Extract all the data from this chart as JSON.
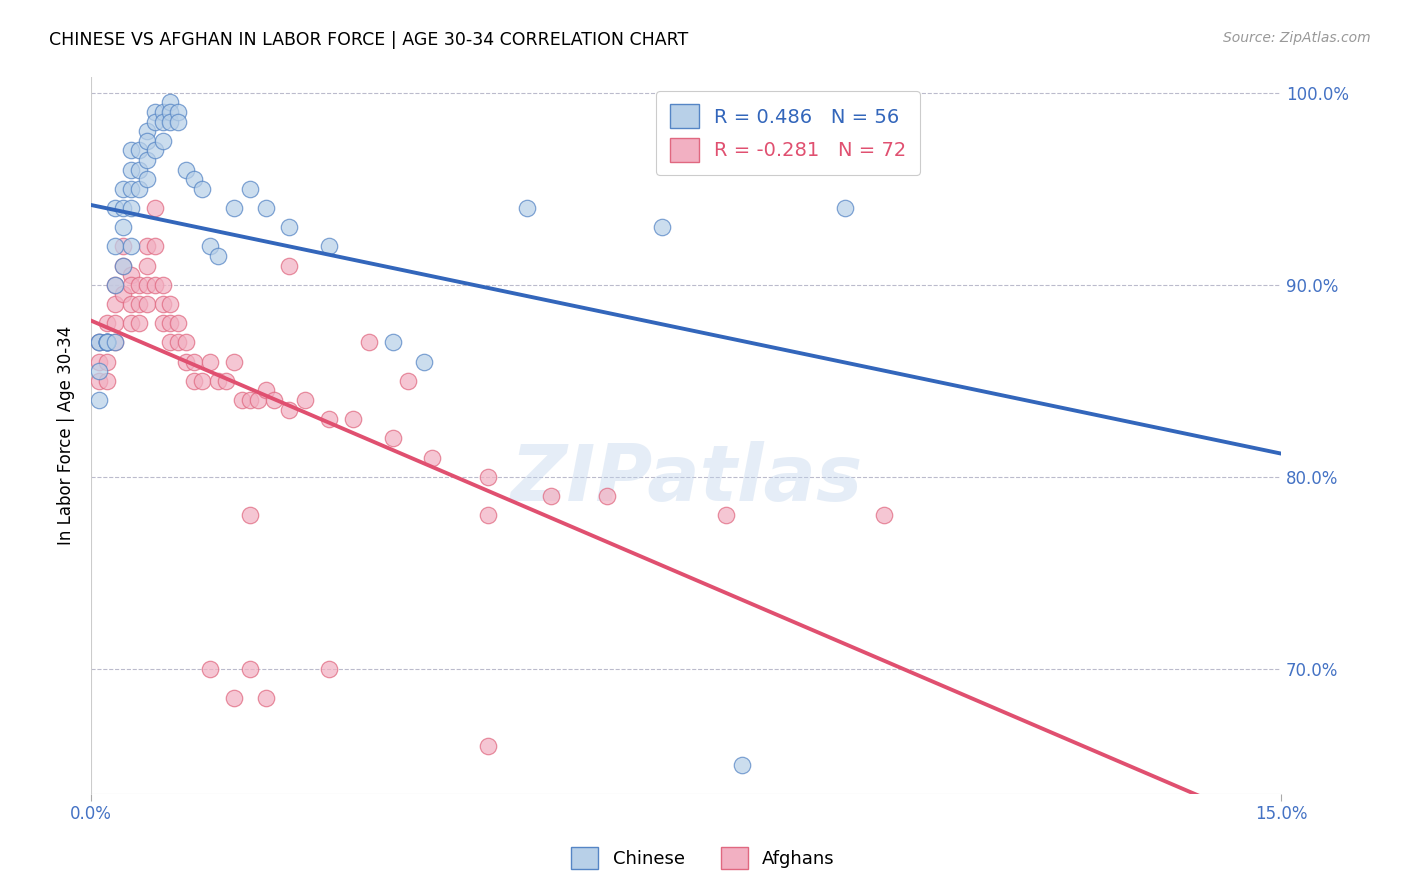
{
  "title": "CHINESE VS AFGHAN IN LABOR FORCE | AGE 30-34 CORRELATION CHART",
  "source": "Source: ZipAtlas.com",
  "ylabel_label": "In Labor Force | Age 30-34",
  "xmin": 0.0,
  "xmax": 0.15,
  "ymin": 0.635,
  "ymax": 1.008,
  "ytick_vals": [
    0.7,
    0.8,
    0.9,
    1.0
  ],
  "ytick_labels": [
    "70.0%",
    "80.0%",
    "90.0%",
    "100.0%"
  ],
  "xtick_vals": [
    0.0,
    0.15
  ],
  "xtick_labels": [
    "0.0%",
    "15.0%"
  ],
  "legend_blue_text": "R = 0.486   N = 56",
  "legend_pink_text": "R = -0.281   N = 72",
  "watermark": "ZIPatlas",
  "blue_fill": "#b8d0e8",
  "blue_edge": "#5585c5",
  "pink_fill": "#f2b0c2",
  "pink_edge": "#e06880",
  "blue_line": "#3366bb",
  "pink_line": "#e05070",
  "chinese_x": [
    0.001,
    0.001,
    0.001,
    0.001,
    0.002,
    0.002,
    0.002,
    0.002,
    0.002,
    0.003,
    0.003,
    0.003,
    0.003,
    0.004,
    0.004,
    0.004,
    0.004,
    0.005,
    0.005,
    0.005,
    0.005,
    0.005,
    0.006,
    0.006,
    0.006,
    0.007,
    0.007,
    0.007,
    0.007,
    0.008,
    0.008,
    0.008,
    0.009,
    0.009,
    0.009,
    0.01,
    0.01,
    0.01,
    0.011,
    0.011,
    0.012,
    0.013,
    0.014,
    0.015,
    0.016,
    0.018,
    0.02,
    0.022,
    0.025,
    0.03,
    0.038,
    0.042,
    0.055,
    0.072,
    0.082,
    0.095
  ],
  "chinese_y": [
    0.87,
    0.855,
    0.84,
    0.87,
    0.87,
    0.87,
    0.87,
    0.87,
    0.87,
    0.94,
    0.92,
    0.9,
    0.87,
    0.95,
    0.94,
    0.93,
    0.91,
    0.97,
    0.96,
    0.95,
    0.94,
    0.92,
    0.97,
    0.96,
    0.95,
    0.98,
    0.975,
    0.965,
    0.955,
    0.99,
    0.985,
    0.97,
    0.99,
    0.985,
    0.975,
    0.995,
    0.99,
    0.985,
    0.99,
    0.985,
    0.96,
    0.955,
    0.95,
    0.92,
    0.915,
    0.94,
    0.95,
    0.94,
    0.93,
    0.92,
    0.87,
    0.86,
    0.94,
    0.93,
    0.65,
    0.94
  ],
  "afghan_x": [
    0.001,
    0.001,
    0.001,
    0.002,
    0.002,
    0.002,
    0.002,
    0.003,
    0.003,
    0.003,
    0.003,
    0.004,
    0.004,
    0.004,
    0.005,
    0.005,
    0.005,
    0.005,
    0.006,
    0.006,
    0.006,
    0.007,
    0.007,
    0.007,
    0.007,
    0.008,
    0.008,
    0.008,
    0.009,
    0.009,
    0.009,
    0.01,
    0.01,
    0.01,
    0.011,
    0.011,
    0.012,
    0.012,
    0.013,
    0.013,
    0.014,
    0.015,
    0.016,
    0.017,
    0.018,
    0.019,
    0.02,
    0.021,
    0.022,
    0.023,
    0.025,
    0.027,
    0.03,
    0.033,
    0.038,
    0.043,
    0.05,
    0.058,
    0.065,
    0.08,
    0.03,
    0.02,
    0.015,
    0.018,
    0.022,
    0.025,
    0.035,
    0.04,
    0.05,
    0.1,
    0.02,
    0.05
  ],
  "afghan_y": [
    0.87,
    0.86,
    0.85,
    0.88,
    0.87,
    0.86,
    0.85,
    0.9,
    0.89,
    0.88,
    0.87,
    0.92,
    0.91,
    0.895,
    0.905,
    0.9,
    0.89,
    0.88,
    0.9,
    0.89,
    0.88,
    0.92,
    0.91,
    0.9,
    0.89,
    0.94,
    0.92,
    0.9,
    0.9,
    0.89,
    0.88,
    0.89,
    0.88,
    0.87,
    0.88,
    0.87,
    0.87,
    0.86,
    0.86,
    0.85,
    0.85,
    0.86,
    0.85,
    0.85,
    0.86,
    0.84,
    0.84,
    0.84,
    0.845,
    0.84,
    0.835,
    0.84,
    0.83,
    0.83,
    0.82,
    0.81,
    0.8,
    0.79,
    0.79,
    0.78,
    0.7,
    0.7,
    0.7,
    0.685,
    0.685,
    0.91,
    0.87,
    0.85,
    0.66,
    0.78,
    0.78,
    0.78
  ]
}
